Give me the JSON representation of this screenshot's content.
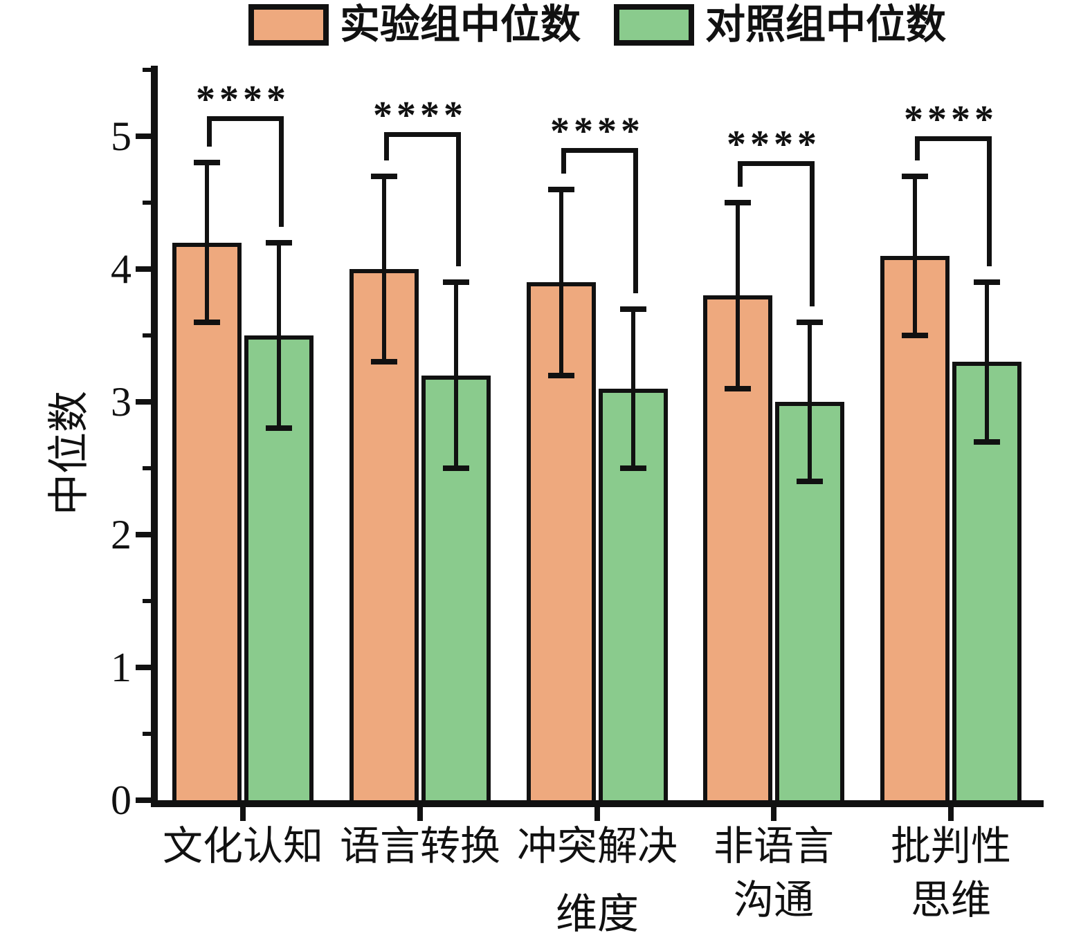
{
  "legend": [
    {
      "label": "实验组中位数",
      "color": "#EEA97E"
    },
    {
      "label": "对照组中位数",
      "color": "#8ACB8D"
    }
  ],
  "y_axis": {
    "label": "中位数",
    "major_ticks": [
      0,
      1,
      2,
      3,
      4,
      5
    ],
    "minor_ticks": [
      0.5,
      1.5,
      2.5,
      3.5,
      4.5,
      5.5
    ],
    "max_shown": 5.5
  },
  "x_axis": {
    "label": "维度"
  },
  "colors": {
    "experimental_fill": "#EEA97E",
    "control_fill": "#8ACB8D",
    "line": "#111111",
    "background": "#FFFFFF"
  },
  "chart_data": {
    "type": "bar",
    "title": "",
    "xlabel": "维度",
    "ylabel": "中位数",
    "ylim": [
      0,
      5.5
    ],
    "grid": false,
    "legend_position": "top",
    "categories": [
      "文化认知",
      "语言转换",
      "冲突解决",
      "非语言沟通",
      "批判性思维"
    ],
    "category_display_lines": [
      [
        "文化认知"
      ],
      [
        "语言转换"
      ],
      [
        "冲突解决"
      ],
      [
        "非语言",
        "沟通"
      ],
      [
        "批判性",
        "思维"
      ]
    ],
    "series": [
      {
        "name": "实验组中位数",
        "color": "#EEA97E",
        "values": [
          4.2,
          4.0,
          3.9,
          3.8,
          4.1
        ],
        "error_low": [
          3.6,
          3.3,
          3.2,
          3.1,
          3.5
        ],
        "error_high": [
          4.8,
          4.7,
          4.6,
          4.5,
          4.7
        ]
      },
      {
        "name": "对照组中位数",
        "color": "#8ACB8D",
        "values": [
          3.5,
          3.2,
          3.1,
          3.0,
          3.3
        ],
        "error_low": [
          2.8,
          2.5,
          2.5,
          2.4,
          2.7
        ],
        "error_high": [
          4.2,
          3.9,
          3.7,
          3.6,
          3.9
        ]
      }
    ],
    "significance": {
      "labels": [
        "****",
        "****",
        "****",
        "****",
        "****"
      ],
      "bracket_top_values": [
        5.15,
        5.03,
        4.91,
        4.81,
        5.0
      ]
    }
  }
}
